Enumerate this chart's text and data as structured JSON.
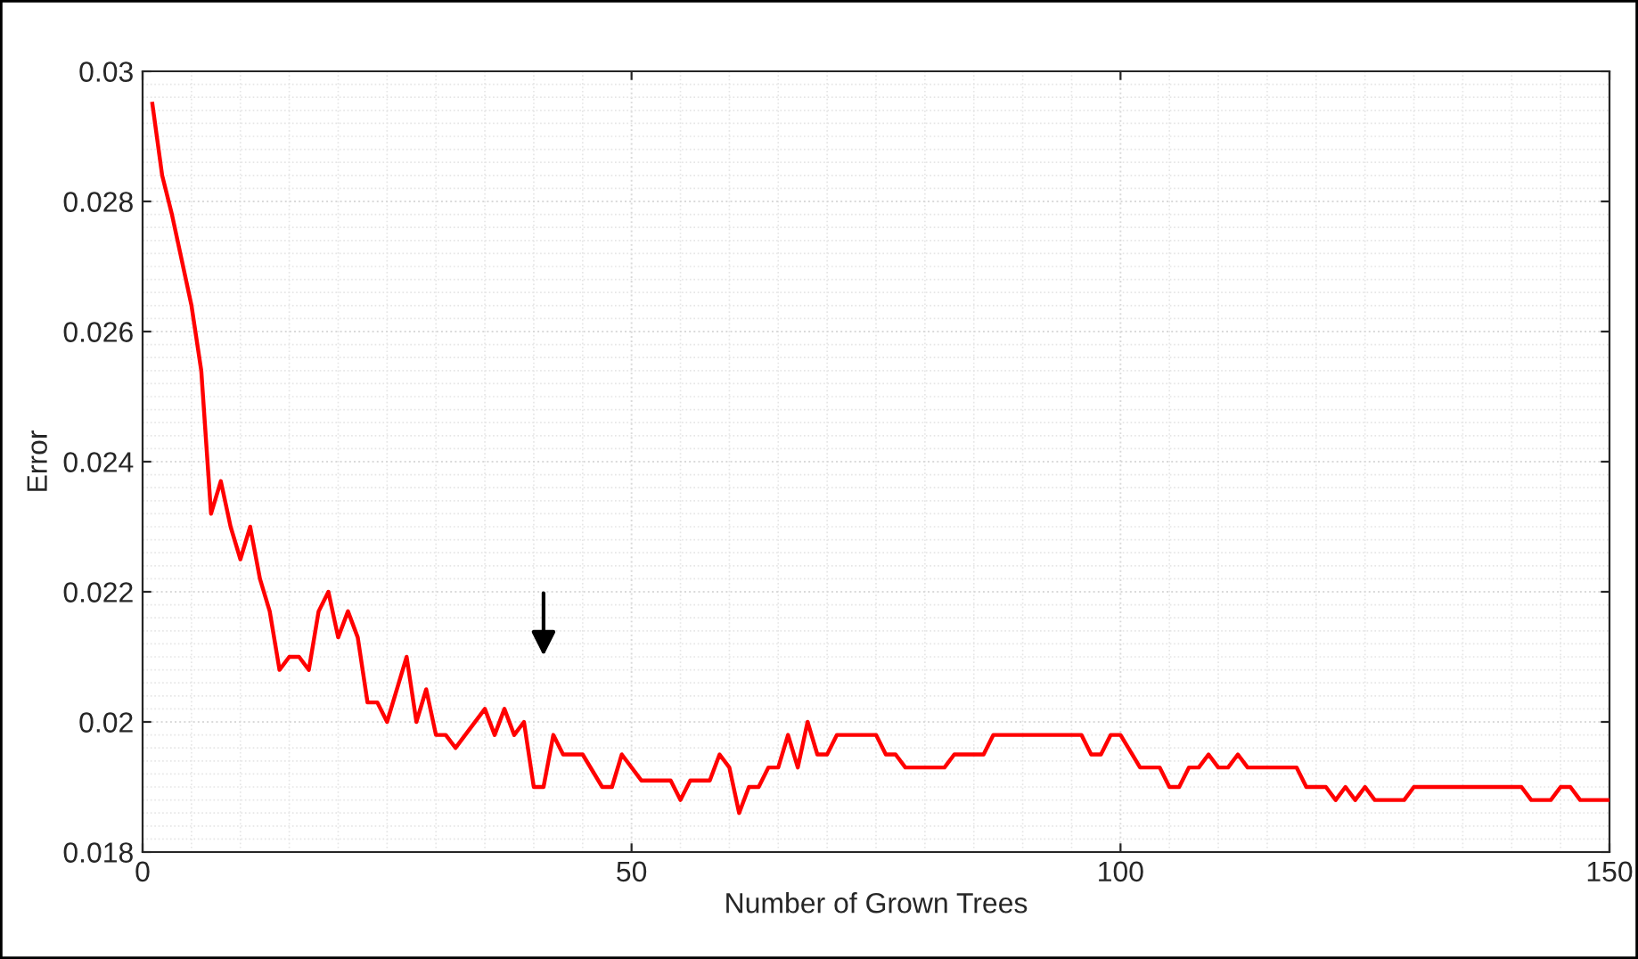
{
  "chart_data": {
    "type": "line",
    "xlabel": "Number of Grown Trees",
    "ylabel": "Error",
    "series": [
      {
        "color": "#ff0000",
        "x": [
          1,
          2,
          3,
          5,
          6,
          7,
          8,
          9,
          10,
          11,
          12,
          13,
          14,
          15,
          16,
          17,
          18,
          19,
          20,
          21,
          22,
          23,
          24,
          25,
          27,
          28,
          29,
          30,
          31,
          32,
          35,
          36,
          37,
          38,
          39,
          40,
          41,
          42,
          43,
          45,
          47,
          48,
          49,
          51,
          54,
          55,
          56,
          58,
          59,
          60,
          61,
          62,
          63,
          64,
          65,
          66,
          67,
          68,
          69,
          70,
          71,
          75,
          76,
          77,
          78,
          82,
          83,
          86,
          87,
          96,
          97,
          98,
          99,
          100,
          102,
          104,
          105,
          106,
          107,
          108,
          109,
          110,
          111,
          112,
          113,
          118,
          119,
          121,
          122,
          123,
          124,
          125,
          126,
          129,
          130,
          141,
          142,
          144,
          145,
          146,
          147,
          150
        ],
        "values": [
          0.0295,
          0.0284,
          0.0278,
          0.0264,
          0.0254,
          0.0232,
          0.0237,
          0.023,
          0.0225,
          0.023,
          0.0222,
          0.0217,
          0.0208,
          0.021,
          0.021,
          0.0208,
          0.0217,
          0.022,
          0.0213,
          0.0217,
          0.0213,
          0.0203,
          0.0203,
          0.02,
          0.021,
          0.02,
          0.0205,
          0.0198,
          0.0198,
          0.0196,
          0.0202,
          0.0198,
          0.0202,
          0.0198,
          0.02,
          0.019,
          0.019,
          0.0198,
          0.0195,
          0.0195,
          0.019,
          0.019,
          0.0195,
          0.0191,
          0.0191,
          0.0188,
          0.0191,
          0.0191,
          0.0195,
          0.0193,
          0.0186,
          0.019,
          0.019,
          0.0193,
          0.0193,
          0.0198,
          0.0193,
          0.02,
          0.0195,
          0.0195,
          0.0198,
          0.0198,
          0.0195,
          0.0195,
          0.0193,
          0.0193,
          0.0195,
          0.0195,
          0.0198,
          0.0198,
          0.0195,
          0.0195,
          0.0198,
          0.0198,
          0.0193,
          0.0193,
          0.019,
          0.019,
          0.0193,
          0.0193,
          0.0195,
          0.0193,
          0.0193,
          0.0195,
          0.0193,
          0.0193,
          0.019,
          0.019,
          0.0188,
          0.019,
          0.0188,
          0.019,
          0.0188,
          0.0188,
          0.019,
          0.019,
          0.0188,
          0.0188,
          0.019,
          0.019,
          0.0188,
          0.0188
        ]
      }
    ],
    "xlim": [
      0,
      150
    ],
    "xticks": [
      0,
      50,
      100,
      150
    ],
    "ylim": [
      0.018,
      0.03
    ],
    "yticks": [
      0.018,
      0.02,
      0.022,
      0.024,
      0.026,
      0.028,
      0.03
    ],
    "grid": true,
    "legend": false,
    "marker": "none",
    "line_style": "solid"
  }
}
